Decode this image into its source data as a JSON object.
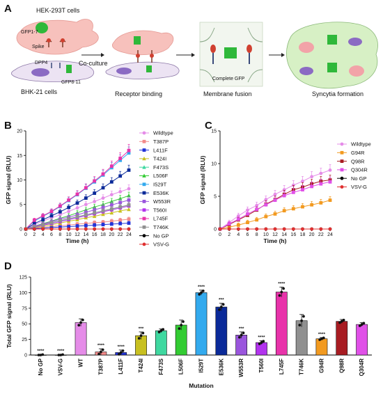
{
  "panels": {
    "A": {
      "letter": "A",
      "hek_label": "HEK-293T cells",
      "gfp17_label": "GFP1-7",
      "spike_label": "Spike",
      "dpp4_label": "DPP4",
      "gfp811_label": "GFP8-11",
      "bhk_label": "BHK-21 cells",
      "coculture_label": "Co-culture",
      "complete_gfp_label": "Complete GFP",
      "step_labels": [
        "Receptor binding",
        "Membrane fusion",
        "Syncytia formation"
      ]
    },
    "B": {
      "letter": "B"
    },
    "C": {
      "letter": "C"
    },
    "D": {
      "letter": "D"
    }
  },
  "chart_data": [
    {
      "panel": "B",
      "type": "line",
      "xlabel": "Time (h)",
      "ylabel": "GFP signal (RLU)",
      "xlim": [
        0,
        24
      ],
      "ylim": [
        0,
        20
      ],
      "xticks": [
        0,
        2,
        4,
        6,
        8,
        10,
        12,
        14,
        16,
        18,
        20,
        22,
        24
      ],
      "yticks": [
        0,
        5,
        10,
        15,
        20
      ],
      "x": [
        0,
        2,
        4,
        6,
        8,
        10,
        12,
        14,
        16,
        18,
        20,
        22,
        24
      ],
      "legend_position": "right",
      "series": [
        {
          "name": "Wildtype",
          "color": "#e58ce8",
          "marker": "circle",
          "values": [
            0,
            0.9,
            1.6,
            2.3,
            2.9,
            3.6,
            4.3,
            5.0,
            5.6,
            6.3,
            7.0,
            7.6,
            8.2
          ]
        },
        {
          "name": "T387P",
          "color": "#f28a8a",
          "marker": "square",
          "values": [
            0,
            0.2,
            0.4,
            0.5,
            0.7,
            0.8,
            1.0,
            1.1,
            1.3,
            1.4,
            1.6,
            1.8,
            2.0
          ]
        },
        {
          "name": "L411F",
          "color": "#2233d8",
          "marker": "square",
          "values": [
            0,
            0.1,
            0.2,
            0.3,
            0.4,
            0.5,
            0.6,
            0.7,
            0.8,
            0.9,
            1.0,
            1.1,
            1.2
          ]
        },
        {
          "name": "T424I",
          "color": "#c8c020",
          "marker": "triangle",
          "values": [
            0,
            0.3,
            0.6,
            0.9,
            1.2,
            1.6,
            1.9,
            2.3,
            2.6,
            3.0,
            3.3,
            3.7,
            4.0
          ]
        },
        {
          "name": "F473S",
          "color": "#3fd8a0",
          "marker": "triangle",
          "values": [
            0,
            0.5,
            0.9,
            1.3,
            1.7,
            2.1,
            2.5,
            2.9,
            3.3,
            3.7,
            4.1,
            4.5,
            4.9
          ]
        },
        {
          "name": "L506F",
          "color": "#33cc33",
          "marker": "triangle",
          "values": [
            0,
            0.6,
            1.1,
            1.6,
            2.2,
            2.7,
            3.3,
            3.9,
            4.5,
            5.0,
            5.6,
            6.2,
            6.8
          ]
        },
        {
          "name": "I529T",
          "color": "#33aaee",
          "marker": "square",
          "values": [
            0,
            1.6,
            2.6,
            3.5,
            4.6,
            5.8,
            7.0,
            8.3,
            9.6,
            11.0,
            12.5,
            14.0,
            15.5
          ]
        },
        {
          "name": "E536K",
          "color": "#0b2a99",
          "marker": "square",
          "values": [
            0,
            1.1,
            1.9,
            2.7,
            3.5,
            4.4,
            5.3,
            6.3,
            7.3,
            8.4,
            9.6,
            10.8,
            12.0
          ]
        },
        {
          "name": "W553R",
          "color": "#9a55dd",
          "marker": "square",
          "values": [
            0,
            0.6,
            1.0,
            1.5,
            2.0,
            2.4,
            2.9,
            3.4,
            3.9,
            4.4,
            4.9,
            5.4,
            5.9
          ]
        },
        {
          "name": "T560I",
          "color": "#b233ee",
          "marker": "square",
          "values": [
            0,
            0.4,
            0.8,
            1.1,
            1.5,
            1.9,
            2.3,
            2.7,
            3.1,
            3.5,
            3.9,
            4.3,
            4.7
          ]
        },
        {
          "name": "L745F",
          "color": "#e833aa",
          "marker": "square",
          "values": [
            0,
            1.8,
            2.7,
            3.6,
            4.7,
            5.9,
            7.1,
            8.4,
            9.8,
            11.2,
            12.8,
            14.4,
            16.0
          ]
        },
        {
          "name": "T746K",
          "color": "#909090",
          "marker": "square",
          "values": [
            0,
            0.5,
            0.9,
            1.3,
            1.7,
            2.1,
            2.5,
            2.9,
            3.3,
            3.7,
            4.1,
            4.5,
            4.9
          ]
        },
        {
          "name": "No GP",
          "color": "#000000",
          "marker": "circle",
          "values": [
            0,
            0,
            0,
            0,
            0,
            0,
            0,
            0,
            0,
            0,
            0,
            0,
            0
          ]
        },
        {
          "name": "VSV-G",
          "color": "#e03030",
          "marker": "circle",
          "values": [
            0,
            0,
            0,
            0,
            0,
            0,
            0,
            0,
            0,
            0,
            0,
            0,
            0
          ]
        }
      ]
    },
    {
      "panel": "C",
      "type": "line",
      "xlabel": "Time (h)",
      "ylabel": "GFP signal (RLU)",
      "xlim": [
        0,
        24
      ],
      "ylim": [
        0,
        15
      ],
      "xticks": [
        0,
        2,
        4,
        6,
        8,
        10,
        12,
        14,
        16,
        18,
        20,
        22,
        24
      ],
      "yticks": [
        0,
        5,
        10,
        15
      ],
      "x": [
        0,
        2,
        4,
        6,
        8,
        10,
        12,
        14,
        16,
        18,
        20,
        22,
        24
      ],
      "legend_position": "right",
      "series": [
        {
          "name": "Wildtype",
          "color": "#e58ce8",
          "marker": "circle",
          "values": [
            0,
            1.0,
            2.0,
            2.9,
            3.6,
            4.5,
            5.3,
            6.0,
            6.7,
            7.3,
            8.0,
            8.5,
            9.0
          ]
        },
        {
          "name": "G94R",
          "color": "#f29a20",
          "marker": "square",
          "values": [
            0,
            0.3,
            0.6,
            1.0,
            1.4,
            1.9,
            2.3,
            2.8,
            3.1,
            3.4,
            3.7,
            4.0,
            4.4
          ]
        },
        {
          "name": "Q98R",
          "color": "#a81c22",
          "marker": "square",
          "values": [
            0,
            0.7,
            1.4,
            2.1,
            2.9,
            3.8,
            4.5,
            5.3,
            6.0,
            6.4,
            6.9,
            7.3,
            7.5
          ]
        },
        {
          "name": "Q304R",
          "color": "#e050e8",
          "marker": "square",
          "values": [
            0,
            0.8,
            1.5,
            2.3,
            3.0,
            3.7,
            4.4,
            5.1,
            5.6,
            6.0,
            6.5,
            6.9,
            7.2
          ]
        },
        {
          "name": "No GP",
          "color": "#000000",
          "marker": "circle",
          "values": [
            0,
            0,
            0,
            0,
            0,
            0,
            0,
            0,
            0,
            0,
            0,
            0,
            0
          ]
        },
        {
          "name": "VSV-G",
          "color": "#e03030",
          "marker": "circle",
          "values": [
            0,
            0,
            0,
            0,
            0,
            0,
            0,
            0,
            0,
            0,
            0,
            0,
            0
          ]
        }
      ]
    },
    {
      "panel": "D",
      "type": "bar",
      "xlabel": "Mutation",
      "ylabel": "Total GFP signal (RLU)",
      "ylim": [
        0,
        125
      ],
      "yticks": [
        0,
        25,
        50,
        75,
        100,
        125
      ],
      "categories": [
        "No GP",
        "VSV-G",
        "WT",
        "T387P",
        "L411F",
        "T424I",
        "F473S",
        "L506F",
        "I529T",
        "E536K",
        "W553R",
        "T560I",
        "L745F",
        "T746K",
        "G94R",
        "Q98R",
        "Q304R"
      ],
      "values": [
        0,
        0,
        52,
        5,
        4,
        31,
        39,
        48,
        100,
        77,
        32,
        20,
        101,
        55,
        26,
        54,
        49
      ],
      "errors": [
        1,
        1,
        6,
        5,
        4,
        6,
        3,
        8,
        4,
        6,
        5,
        3,
        8,
        10,
        2,
        3,
        3
      ],
      "colors": [
        "#000000",
        "#e03030",
        "#e58ce8",
        "#f28a8a",
        "#2233d8",
        "#c8c020",
        "#3fd8a0",
        "#33cc33",
        "#33aaee",
        "#0b2a99",
        "#9a55dd",
        "#b233ee",
        "#e833aa",
        "#909090",
        "#f29a20",
        "#a81c22",
        "#e050e8"
      ],
      "significance": [
        "****",
        "****",
        "",
        "****",
        "****",
        "***",
        "",
        "",
        "****",
        "***",
        "***",
        "****",
        "****",
        "",
        "****",
        "",
        ""
      ]
    }
  ]
}
